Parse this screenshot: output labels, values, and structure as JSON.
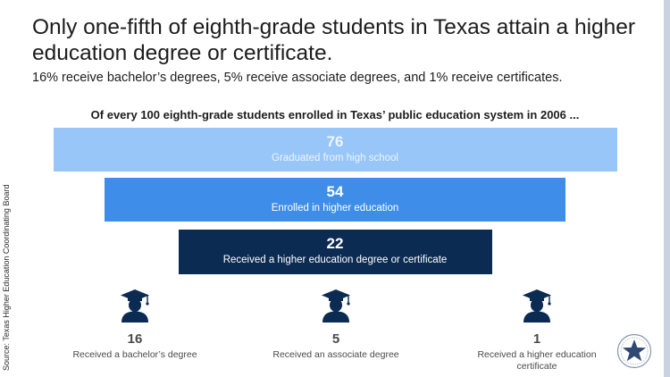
{
  "title": "Only one-fifth of eighth-grade students in Texas attain a higher education degree or certificate.",
  "subtitle": "16% receive bachelor’s degrees, 5% receive associate degrees, and 1% receive certificates.",
  "lead": "Of every 100 eighth-grade students enrolled in Texas’ public education system in 2006 ...",
  "source": "Source: Texas Higher Education Coordinating Board",
  "icons": {
    "graduate": "graduate-cap-person-icon",
    "seal": "texas-star-seal-icon"
  },
  "colors": {
    "light": "#98c6f8",
    "medium": "#3e8ee9",
    "dark": "#0c2b52",
    "text_gray": "#4a4a4a"
  },
  "chart_data": {
    "type": "bar",
    "orientation": "horizontal-funnel",
    "base": 100,
    "bars": [
      {
        "value": 76,
        "value_label": "76",
        "label": "Graduated from high school",
        "color": "#98c6f8"
      },
      {
        "value": 54,
        "value_label": "54",
        "label": "Enrolled in higher education",
        "color": "#3e8ee9"
      },
      {
        "value": 22,
        "value_label": "22",
        "label": "Received a higher education degree or certificate",
        "color": "#0c2b52"
      }
    ],
    "breakdown": [
      {
        "value": 16,
        "value_label": "16",
        "label": "Received a bachelor’s degree"
      },
      {
        "value": 5,
        "value_label": "5",
        "label": "Received an associate degree"
      },
      {
        "value": 1,
        "value_label": "1",
        "label": "Received a higher education certificate"
      }
    ]
  }
}
